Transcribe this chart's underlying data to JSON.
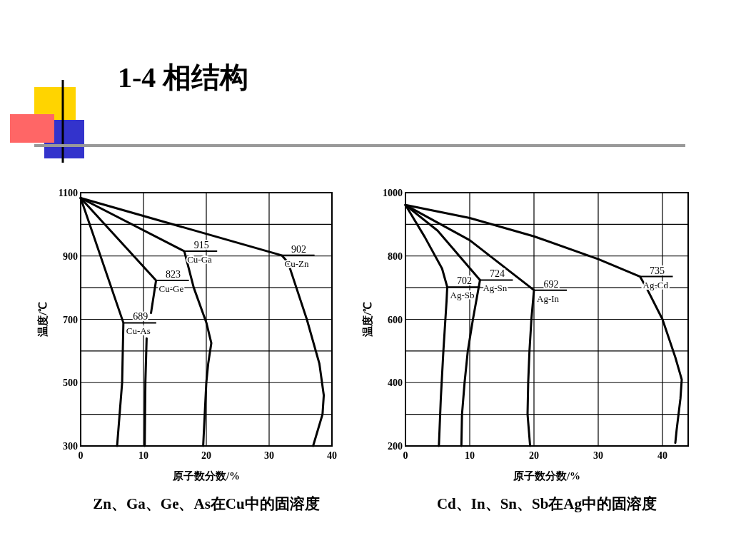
{
  "chart_data": [
    {
      "type": "line",
      "title": "1-4 相结构",
      "xlabel": "原子数分数/%",
      "ylabel": "温度/℃",
      "xlim": [
        0,
        40
      ],
      "ylim": [
        300,
        1100
      ],
      "xticks": [
        0,
        10,
        20,
        30,
        40
      ],
      "yticks": [
        300,
        {
          "value": 400,
          "label": null
        },
        500,
        {
          "value": 600,
          "label": null
        },
        700,
        {
          "value": 800,
          "label": null
        },
        900,
        {
          "value": 1000,
          "label": null
        },
        1100
      ],
      "grid": true,
      "legend": "center",
      "line_style": "solid",
      "series": [
        {
          "name": "Cu-Zn",
          "color": "#000000",
          "x": [
            0,
            32,
            33,
            36,
            38,
            38.7,
            38.5,
            37
          ],
          "values": [
            1083,
            902,
            880,
            700,
            560,
            460,
            400,
            300
          ]
        },
        {
          "name": "Cu-Ga",
          "color": "#000000",
          "x": [
            0,
            16.5,
            18,
            20,
            20.8,
            20.3,
            20,
            19.5
          ],
          "values": [
            1083,
            915,
            800,
            690,
            625,
            560,
            500,
            300
          ]
        },
        {
          "name": "Cu-Ge",
          "color": "#000000",
          "x": [
            0,
            12,
            11.2,
            null,
            10.5,
            10.3,
            10.2
          ],
          "values": [
            1083,
            823,
            720,
            null,
            640,
            500,
            300
          ]
        },
        {
          "name": "Cu-As",
          "color": "#000000",
          "x": [
            0,
            6.8,
            6.6,
            6.2,
            5.8
          ],
          "values": [
            1083,
            689,
            500,
            400,
            300
          ]
        }
      ],
      "annotations": [
        {
          "text": "902",
          "x": 32,
          "y": 902
        },
        {
          "text": "915",
          "x": 16.5,
          "y": 915
        },
        {
          "text": "823",
          "x": 12,
          "y": 823
        },
        {
          "text": "689",
          "x": 6.8,
          "y": 689
        },
        "Zn、Ga、Ge、As在Cu中的固溶度"
      ]
    },
    {
      "type": "line",
      "xlabel": "原子数分数/%",
      "ylabel": "温度/℃",
      "xlim": [
        0,
        44
      ],
      "ylim": [
        200,
        1000
      ],
      "xticks": [
        0,
        10,
        20,
        30,
        40
      ],
      "yticks": [
        200,
        {
          "value": 300,
          "label": null
        },
        400,
        {
          "value": 500,
          "label": null
        },
        600,
        {
          "value": 700,
          "label": null
        },
        800,
        {
          "value": 900,
          "label": null
        },
        1000
      ],
      "grid": true,
      "legend": "center",
      "line_style": "solid",
      "series": [
        {
          "name": "Ag-Cd",
          "color": "#000000",
          "x": [
            0,
            10,
            20,
            30,
            36.5,
            37.5,
            40,
            42,
            43,
            42.8,
            42.2,
            42
          ],
          "values": [
            961,
            920,
            862,
            790,
            735,
            700,
            600,
            480,
            410,
            350,
            250,
            210
          ]
        },
        {
          "name": "Ag-In",
          "color": "#000000",
          "x": [
            0,
            10,
            20,
            19.6,
            19.3,
            19.1,
            19,
            19.4
          ],
          "values": [
            961,
            850,
            692,
            600,
            500,
            400,
            300,
            200
          ]
        },
        {
          "name": "Ag-Sn",
          "color": "#000000",
          "x": [
            0,
            5,
            11.6,
            10.5,
            9.7,
            9.2,
            8.8,
            8.7
          ],
          "values": [
            961,
            880,
            724,
            600,
            500,
            400,
            300,
            200
          ]
        },
        {
          "name": "Ag-Sb",
          "color": "#000000",
          "x": [
            0,
            3,
            5.7,
            6.5,
            6.4,
            5.9,
            5.5,
            5.2
          ],
          "values": [
            961,
            860,
            760,
            702,
            660,
            500,
            350,
            200
          ]
        }
      ],
      "annotations": [
        {
          "text": "735",
          "x": 36.5,
          "y": 735
        },
        {
          "text": "692",
          "x": 20,
          "y": 692
        },
        {
          "text": "724",
          "x": 11.6,
          "y": 724
        },
        {
          "text": "702",
          "x": 6.5,
          "y": 702
        },
        "Cd、In、Sn、Sb在Ag中的固溶度"
      ]
    }
  ]
}
